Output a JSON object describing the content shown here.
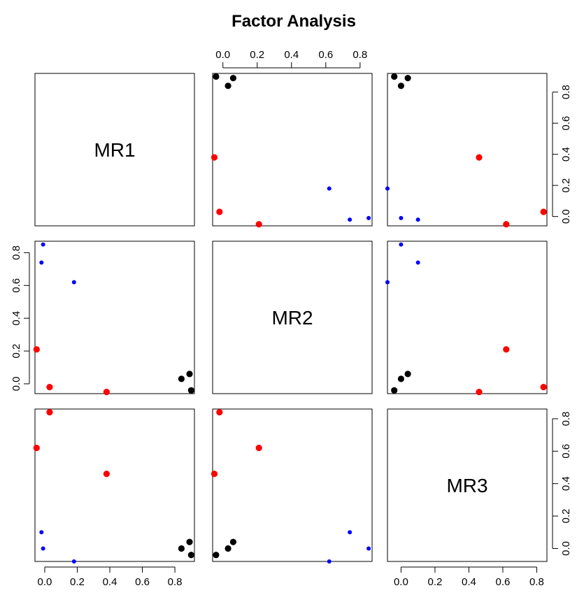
{
  "chart_data": {
    "type": "scatter",
    "title": "Factor Analysis",
    "variables": [
      "MR1",
      "MR2",
      "MR3"
    ],
    "axis_ticks": [
      0.0,
      0.2,
      0.4,
      0.6,
      0.8
    ],
    "axis_tick_labels": [
      "0.0",
      "0.2",
      "0.4",
      "0.6",
      "0.8"
    ],
    "ranges": {
      "MR1": [
        -0.06,
        0.92
      ],
      "MR2": [
        -0.06,
        0.87
      ],
      "MR3": [
        -0.08,
        0.86
      ]
    },
    "colors": {
      "black": "#000000",
      "red": "#ff0000",
      "blue": "#0000ff"
    },
    "points": [
      {
        "MR1": 0.89,
        "MR2": 0.06,
        "MR3": 0.04,
        "color": "black",
        "size": "large"
      },
      {
        "MR1": 0.84,
        "MR2": 0.03,
        "MR3": 0.0,
        "color": "black",
        "size": "large"
      },
      {
        "MR1": 0.9,
        "MR2": -0.04,
        "MR3": -0.04,
        "color": "black",
        "size": "large"
      },
      {
        "MR1": 0.38,
        "MR2": -0.05,
        "MR3": 0.46,
        "color": "red",
        "size": "large"
      },
      {
        "MR1": -0.05,
        "MR2": 0.21,
        "MR3": 0.62,
        "color": "red",
        "size": "large"
      },
      {
        "MR1": 0.03,
        "MR2": -0.02,
        "MR3": 0.84,
        "color": "red",
        "size": "large"
      },
      {
        "MR1": -0.01,
        "MR2": 0.85,
        "MR3": 0.0,
        "color": "blue",
        "size": "small"
      },
      {
        "MR1": -0.02,
        "MR2": 0.74,
        "MR3": 0.1,
        "color": "blue",
        "size": "small"
      },
      {
        "MR1": 0.18,
        "MR2": 0.62,
        "MR3": -0.08,
        "color": "blue",
        "size": "small"
      }
    ]
  }
}
